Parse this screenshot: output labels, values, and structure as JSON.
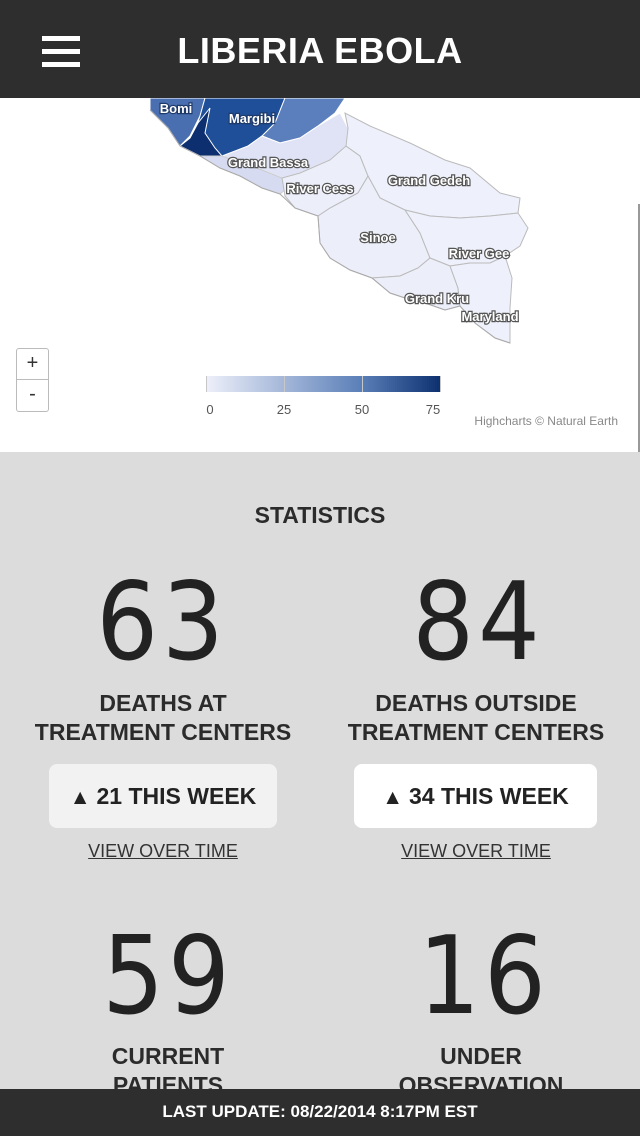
{
  "header": {
    "title": "LIBERIA EBOLA",
    "menu_icon": "hamburger-menu-icon"
  },
  "map": {
    "regions": [
      "Bomi",
      "Margibi",
      "Grand Bassa",
      "River Cess",
      "Grand Gedeh",
      "Sinoe",
      "River Gee",
      "Grand Kru",
      "Maryland"
    ],
    "zoom_in_label": "+",
    "zoom_out_label": "-",
    "legend": {
      "ticks": [
        "0",
        "25",
        "50",
        "75"
      ],
      "color_low": "#eef0fa",
      "color_high": "#0d2f6f"
    },
    "credits": "Highcharts © Natural Earth"
  },
  "stats": {
    "heading": "STATISTICS",
    "items": [
      {
        "value": "63",
        "label_line1": "DEATHS AT",
        "label_line2": "TREATMENT CENTERS",
        "week": "21 THIS WEEK",
        "link": "VIEW OVER TIME"
      },
      {
        "value": "84",
        "label_line1": "DEATHS OUTSIDE",
        "label_line2": "TREATMENT CENTERS",
        "week": "34 THIS WEEK",
        "link": "VIEW OVER TIME"
      },
      {
        "value": "59",
        "label_line1": "CURRENT",
        "label_line2": "PATIENTS"
      },
      {
        "value": "16",
        "label_line1": "UNDER",
        "label_line2": "OBSERVATION"
      }
    ],
    "week_arrow": "▲"
  },
  "footer": {
    "last_update": "LAST UPDATE: 08/22/2014 8:17PM EST"
  }
}
